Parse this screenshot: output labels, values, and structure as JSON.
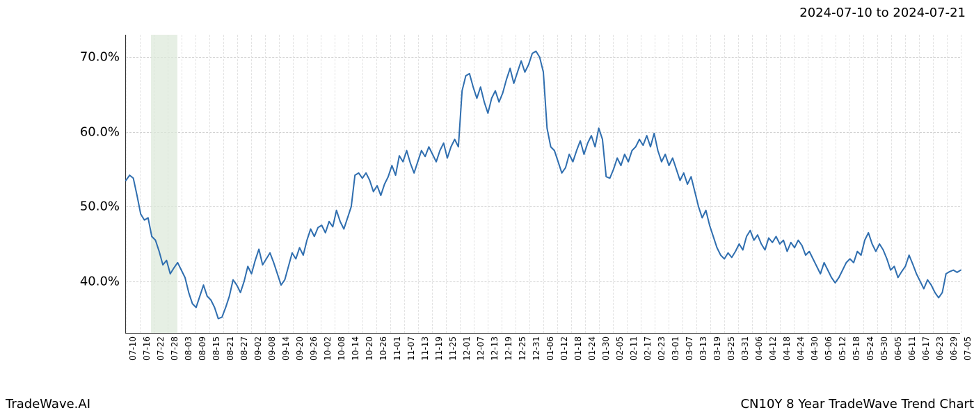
{
  "header": {
    "date_range": "2024-07-10 to 2024-07-21"
  },
  "footer": {
    "left": "TradeWave.AI",
    "right": "CN10Y 8 Year TradeWave Trend Chart"
  },
  "chart": {
    "type": "line",
    "background_color": "#ffffff",
    "line_color": "#2f6eaf",
    "line_width": 2.0,
    "grid_color": "#cfcfcf",
    "minor_grid_color": "#e2e2e2",
    "highlight_color": "#dce8d8",
    "axis_color": "#333333",
    "yaxis": {
      "min": 33.0,
      "max": 73.0,
      "ticks": [
        40.0,
        50.0,
        60.0,
        70.0
      ],
      "tick_labels": [
        "40.0%",
        "50.0%",
        "60.0%",
        "70.0%"
      ],
      "label_fontsize": 18
    },
    "xaxis": {
      "tick_labels": [
        "07-10",
        "07-16",
        "07-22",
        "07-28",
        "08-03",
        "08-09",
        "08-15",
        "08-21",
        "08-27",
        "09-02",
        "09-08",
        "09-14",
        "09-20",
        "09-26",
        "10-02",
        "10-08",
        "10-14",
        "10-20",
        "10-26",
        "11-01",
        "11-07",
        "11-13",
        "11-19",
        "11-25",
        "12-01",
        "12-07",
        "12-13",
        "12-19",
        "12-25",
        "12-31",
        "01-06",
        "01-12",
        "01-18",
        "01-24",
        "01-30",
        "02-05",
        "02-11",
        "02-17",
        "02-23",
        "03-01",
        "03-07",
        "03-13",
        "03-19",
        "03-25",
        "03-31",
        "04-06",
        "04-12",
        "04-18",
        "04-24",
        "04-30",
        "05-06",
        "05-12",
        "05-18",
        "05-24",
        "05-30",
        "06-05",
        "06-11",
        "06-17",
        "06-23",
        "06-29",
        "07-05"
      ],
      "label_fontsize": 12,
      "label_rotation": -90
    },
    "highlight_band": {
      "start_index": 1.8,
      "end_index": 3.7
    },
    "series": {
      "values": [
        53.5,
        54.2,
        53.8,
        51.5,
        49.0,
        48.2,
        48.5,
        46.0,
        45.5,
        44.0,
        42.2,
        42.8,
        41.0,
        41.8,
        42.5,
        41.5,
        40.5,
        38.5,
        37.0,
        36.5,
        38.0,
        39.5,
        38.0,
        37.5,
        36.5,
        35.0,
        35.2,
        36.5,
        38.0,
        40.2,
        39.5,
        38.5,
        40.0,
        42.0,
        41.0,
        42.8,
        44.3,
        42.2,
        43.0,
        43.8,
        42.5,
        41.0,
        39.5,
        40.2,
        42.0,
        43.8,
        43.0,
        44.5,
        43.5,
        45.5,
        47.0,
        46.0,
        47.2,
        47.5,
        46.5,
        48.0,
        47.3,
        49.5,
        48.0,
        47.0,
        48.5,
        50.0,
        54.2,
        54.5,
        53.8,
        54.5,
        53.5,
        52.0,
        52.8,
        51.5,
        53.0,
        54.0,
        55.5,
        54.2,
        56.8,
        56.0,
        57.5,
        55.8,
        54.5,
        56.0,
        57.5,
        56.7,
        58.0,
        57.0,
        56.0,
        57.5,
        58.5,
        56.5,
        58.0,
        59.0,
        58.0,
        65.5,
        67.5,
        67.8,
        66.0,
        64.5,
        66.0,
        64.0,
        62.5,
        64.5,
        65.5,
        64.0,
        65.2,
        67.0,
        68.5,
        66.5,
        68.0,
        69.5,
        68.0,
        69.0,
        70.5,
        70.8,
        70.0,
        68.0,
        60.5,
        58.0,
        57.5,
        56.0,
        54.5,
        55.2,
        57.0,
        56.0,
        57.5,
        58.8,
        57.0,
        58.5,
        59.5,
        58.0,
        60.5,
        59.0,
        54.0,
        53.8,
        55.0,
        56.5,
        55.5,
        57.0,
        56.0,
        57.5,
        58.0,
        59.0,
        58.2,
        59.5,
        58.0,
        59.8,
        57.5,
        56.0,
        57.0,
        55.5,
        56.5,
        55.0,
        53.5,
        54.5,
        53.0,
        54.0,
        52.0,
        50.0,
        48.5,
        49.5,
        47.5,
        46.0,
        44.5,
        43.5,
        43.0,
        43.8,
        43.2,
        44.0,
        45.0,
        44.2,
        46.0,
        46.8,
        45.5,
        46.2,
        45.0,
        44.2,
        45.8,
        45.2,
        46.0,
        45.0,
        45.5,
        44.0,
        45.2,
        44.5,
        45.5,
        44.8,
        43.5,
        44.0,
        43.0,
        42.0,
        41.0,
        42.5,
        41.5,
        40.5,
        39.8,
        40.5,
        41.5,
        42.5,
        43.0,
        42.5,
        44.0,
        43.5,
        45.5,
        46.5,
        45.0,
        44.0,
        45.0,
        44.2,
        43.0,
        41.5,
        42.0,
        40.5,
        41.3,
        42.0,
        43.5,
        42.3,
        41.0,
        40.0,
        39.0,
        40.2,
        39.5,
        38.5,
        37.8,
        38.5,
        41.0,
        41.3,
        41.5,
        41.2,
        41.5
      ]
    }
  }
}
